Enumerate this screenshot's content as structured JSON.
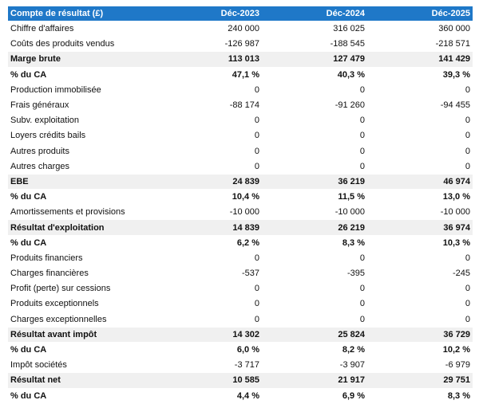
{
  "table": {
    "header": [
      "Compte de résultat (£)",
      "Déc-2023",
      "Déc-2024",
      "Déc-2025"
    ],
    "rows": [
      [
        "Chiffre d'affaires",
        "240 000",
        "316 025",
        "360 000"
      ],
      [
        "Coûts des produits vendus",
        "-126 987",
        "-188 545",
        "-218 571"
      ],
      [
        "Marge brute",
        "113 013",
        "127 479",
        "141 429"
      ],
      [
        "% du CA",
        "47,1 %",
        "40,3 %",
        "39,3 %"
      ],
      [
        "Production immobilisée",
        "0",
        "0",
        "0"
      ],
      [
        "Frais généraux",
        "-88 174",
        "-91 260",
        "-94 455"
      ],
      [
        "Subv. exploitation",
        "0",
        "0",
        "0"
      ],
      [
        "Loyers crédits bails",
        "0",
        "0",
        "0"
      ],
      [
        "Autres produits",
        "0",
        "0",
        "0"
      ],
      [
        "Autres charges",
        "0",
        "0",
        "0"
      ],
      [
        "EBE",
        "24 839",
        "36 219",
        "46 974"
      ],
      [
        "% du CA",
        "10,4 %",
        "11,5 %",
        "13,0 %"
      ],
      [
        "Amortissements et provisions",
        "-10 000",
        "-10 000",
        "-10 000"
      ],
      [
        "Résultat d'exploitation",
        "14 839",
        "26 219",
        "36 974"
      ],
      [
        "% du CA",
        "6,2 %",
        "8,3 %",
        "10,3 %"
      ],
      [
        "Produits financiers",
        "0",
        "0",
        "0"
      ],
      [
        "Charges financières",
        "-537",
        "-395",
        "-245"
      ],
      [
        "Profit (perte) sur cessions",
        "0",
        "0",
        "0"
      ],
      [
        "Produits exceptionnels",
        "0",
        "0",
        "0"
      ],
      [
        "Charges exceptionnelles",
        "0",
        "0",
        "0"
      ],
      [
        "Résultat avant impôt",
        "14 302",
        "25 824",
        "36 729"
      ],
      [
        "% du CA",
        "6,0 %",
        "8,2 %",
        "10,2 %"
      ],
      [
        "Impôt sociétés",
        "-3 717",
        "-3 907",
        "-6 979"
      ],
      [
        "Résultat net",
        "10 585",
        "21 917",
        "29 751"
      ],
      [
        "% du CA",
        "4,4 %",
        "6,9 %",
        "8,3 %"
      ]
    ]
  }
}
